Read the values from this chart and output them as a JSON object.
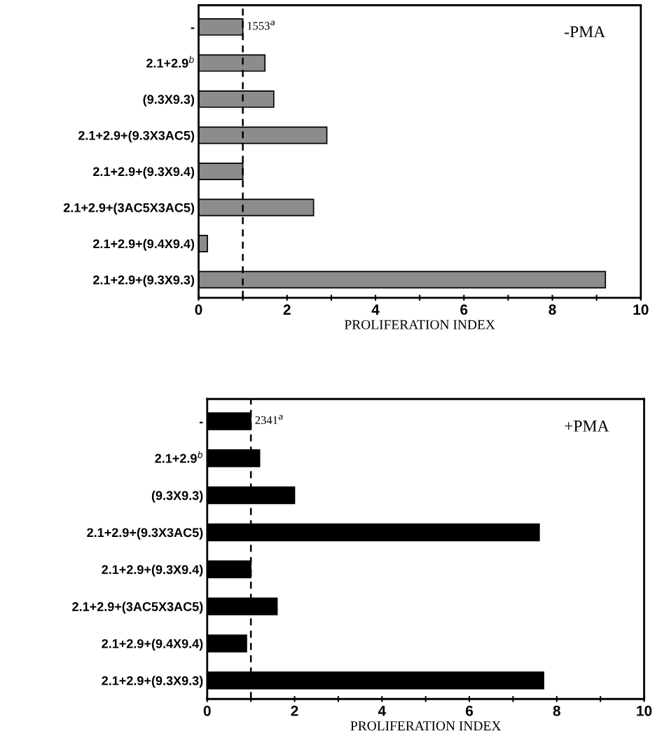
{
  "chart_data": [
    {
      "type": "bar",
      "orientation": "horizontal",
      "xlabel": "PROLIFERATION INDEX",
      "categories": [
        "-",
        "2.1+2.9$^{b}$",
        "(9.3X9.3)",
        "2.1+2.9+(9.3X3AC5)",
        "2.1+2.9+(9.3X9.4)",
        "2.1+2.9+(3AC5X3AC5)",
        "2.1+2.9+(9.4X9.4)",
        "2.1+2.9+(9.3X9.3)"
      ],
      "values": [
        1.0,
        1.5,
        1.7,
        2.9,
        1.0,
        2.6,
        0.2,
        9.2
      ],
      "color": "#8c8c8c",
      "xlim": [
        0,
        10
      ],
      "xticks": [
        0,
        {
          "value": 1,
          "label": null
        },
        2,
        {
          "value": 3,
          "label": null
        },
        4,
        {
          "value": 5,
          "label": null
        },
        6,
        {
          "value": 7,
          "label": null
        },
        8,
        {
          "value": 9,
          "label": null
        },
        10
      ],
      "ref_lines": [
        {
          "axis": "x",
          "value": 1,
          "line_style": "dashed",
          "color": "#000000"
        }
      ],
      "annotations": [
        {
          "text": "1553$^{a}$",
          "x": 1.0,
          "y": "-"
        },
        "-PMA"
      ],
      "grid": false
    },
    {
      "type": "bar",
      "orientation": "horizontal",
      "xlabel": "PROLIFERATION INDEX",
      "categories": [
        "-",
        "2.1+2.9$^{b}$",
        "(9.3X9.3)",
        "2.1+2.9+(9.3X3AC5)",
        "2.1+2.9+(9.3X9.4)",
        "2.1+2.9+(3AC5X3AC5)",
        "2.1+2.9+(9.4X9.4)",
        "2.1+2.9+(9.3X9.3)"
      ],
      "values": [
        1.0,
        1.2,
        2.0,
        7.6,
        1.0,
        1.6,
        0.9,
        7.7
      ],
      "color": "#000000",
      "xlim": [
        0,
        10
      ],
      "xticks": [
        0,
        {
          "value": 1,
          "label": null
        },
        2,
        {
          "value": 3,
          "label": null
        },
        4,
        {
          "value": 5,
          "label": null
        },
        6,
        {
          "value": 7,
          "label": null
        },
        8,
        {
          "value": 9,
          "label": null
        },
        10
      ],
      "ref_lines": [
        {
          "axis": "x",
          "value": 1,
          "line_style": "dashed",
          "color": "#000000"
        }
      ],
      "annotations": [
        {
          "text": "2341$^{a}$",
          "x": 1.0,
          "y": "-"
        },
        "+PMA"
      ],
      "grid": false
    }
  ]
}
